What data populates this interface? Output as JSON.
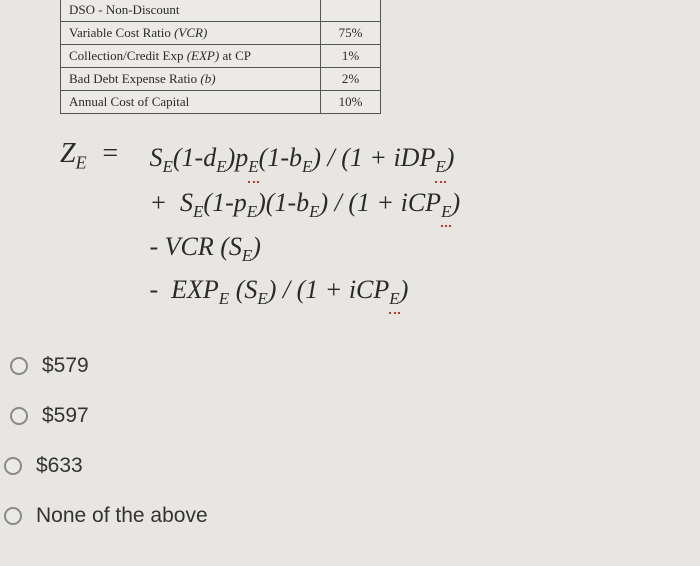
{
  "table": {
    "rows": [
      {
        "label_html": "DSO - Non-Discount",
        "value": ""
      },
      {
        "label_html": "Variable Cost Ratio <span class='ital'>(VCR)</span>",
        "value": "75%"
      },
      {
        "label_html": "Collection/Credit Exp <span class='ital'>(EXP)</span> at CP",
        "value": "1%"
      },
      {
        "label_html": "Bad Debt Expense Ratio <span class='ital'>(b)</span>",
        "value": "2%"
      },
      {
        "label_html": "Annual Cost of Capital",
        "value": "10%"
      }
    ]
  },
  "formula": {
    "lhs_var": "Z",
    "lhs_sub": "E",
    "eq": "=",
    "line1_a": "S",
    "line1_b": "(1-d",
    "line1_c": ")p",
    "line1_d": "(1-b",
    "line1_e": ") / (1 + iDP",
    "line1_f": ")",
    "line2_a": "+  S",
    "line2_b": "(1-p",
    "line2_c": ")(1-b",
    "line2_d": ") / (1 + iCP",
    "line2_e": ")",
    "line3": "- VCR (S",
    "line3_b": ")",
    "line4_a": "-  EXP",
    "line4_b": " (S",
    "line4_c": ") / (1 + iCP",
    "line4_d": ")",
    "sub_E": "E"
  },
  "options": {
    "o1": "$579",
    "o2": "$597",
    "o3": "$633",
    "o4": "None of the above"
  }
}
